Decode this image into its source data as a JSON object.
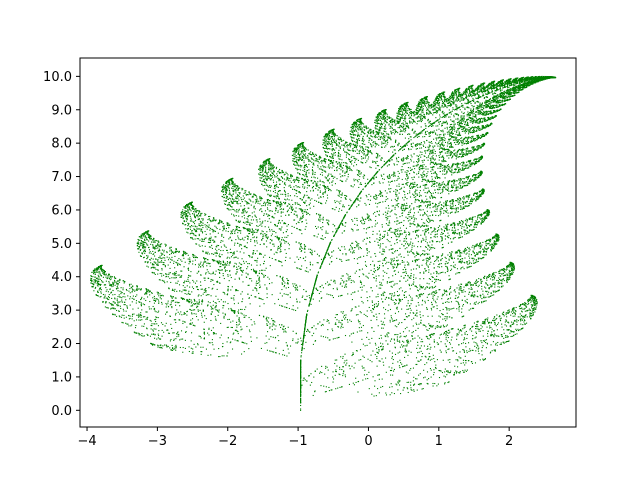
{
  "chart_data": {
    "type": "scatter",
    "title": "",
    "xlabel": "",
    "ylabel": "",
    "xlim": [
      -4.1,
      2.95
    ],
    "ylim": [
      -0.5,
      10.55
    ],
    "x_ticks": [
      -4,
      -3,
      -2,
      -1,
      0,
      1,
      2
    ],
    "x_tick_labels": [
      "−4",
      "−3",
      "−2",
      "−1",
      "0",
      "1",
      "2"
    ],
    "y_ticks": [
      0,
      1,
      2,
      3,
      4,
      5,
      6,
      7,
      8,
      9,
      10
    ],
    "y_tick_labels": [
      "0.0",
      "1.0",
      "2.0",
      "3.0",
      "4.0",
      "5.0",
      "6.0",
      "7.0",
      "8.0",
      "9.0",
      "10.0"
    ],
    "grid": false,
    "series": [
      {
        "generator": "barnsley-fern-ifs",
        "point_count": 15000,
        "marker_color": "#008000",
        "x_range": [
          -3.95,
          2.66
        ],
        "y_range": [
          0.0,
          10.0
        ]
      }
    ]
  },
  "colors": {
    "points": "#008000",
    "axes": "#000000",
    "background": "#ffffff"
  }
}
